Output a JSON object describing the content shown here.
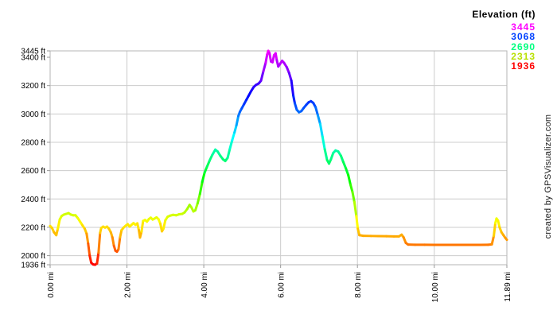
{
  "page": {
    "background": "#ffffff"
  },
  "legend": {
    "title": "Elevation (ft)",
    "entries": [
      {
        "label": "3445",
        "color": "#ff00ff"
      },
      {
        "label": "3068",
        "color": "#0040ff"
      },
      {
        "label": "2690",
        "color": "#00ff80"
      },
      {
        "label": "2313",
        "color": "#b8e000"
      },
      {
        "label": "1936",
        "color": "#ff0000"
      }
    ]
  },
  "watermark": {
    "text": "created by GPSVisualizer.com"
  },
  "chart_data": {
    "type": "line",
    "title": "",
    "x_unit": "mi",
    "y_unit": "ft",
    "xlim": [
      0,
      11.89
    ],
    "ylim": [
      1936,
      3445
    ],
    "grid_on": true,
    "grid_color": "#cccccc",
    "frame_color": "#b5b5b5",
    "tick_color": "#999999",
    "line_width": 3,
    "legend_position": "top-right",
    "color_scale": {
      "min": 1936,
      "max": 3445,
      "hue_start": 0,
      "hue_end": 300,
      "description": "elevation mapped to hsl hue: red lowest to magenta highest"
    },
    "x_gridlines": [
      2,
      4,
      6,
      8,
      10
    ],
    "y_gridlines": [
      2000,
      2200,
      2400,
      2600,
      2800,
      3000,
      3200
    ],
    "x_ticks": [
      {
        "value": 0,
        "label": "0.00 mi"
      },
      {
        "value": 2,
        "label": "2.00 mi"
      },
      {
        "value": 4,
        "label": "4.00 mi"
      },
      {
        "value": 6,
        "label": "6.00 mi"
      },
      {
        "value": 8,
        "label": "8.00 mi"
      },
      {
        "value": 10,
        "label": "10.00 mi"
      },
      {
        "value": 11.89,
        "label": "11.89 mi"
      }
    ],
    "y_ticks": [
      {
        "value": 3445,
        "label": "3445 ft"
      },
      {
        "value": 3400,
        "label": "3400 ft"
      },
      {
        "value": 3200,
        "label": "3200 ft"
      },
      {
        "value": 3000,
        "label": "3000 ft"
      },
      {
        "value": 2800,
        "label": "2800 ft"
      },
      {
        "value": 2600,
        "label": "2600 ft"
      },
      {
        "value": 2400,
        "label": "2400 ft"
      },
      {
        "value": 2200,
        "label": "2200 ft"
      },
      {
        "value": 2000,
        "label": "2000 ft"
      },
      {
        "value": 1936,
        "label": "1936 ft"
      }
    ],
    "series": [
      {
        "name": "Elevation (ft)",
        "points": [
          [
            0.0,
            2210
          ],
          [
            0.05,
            2195
          ],
          [
            0.1,
            2165
          ],
          [
            0.16,
            2145
          ],
          [
            0.2,
            2190
          ],
          [
            0.25,
            2255
          ],
          [
            0.3,
            2280
          ],
          [
            0.36,
            2290
          ],
          [
            0.42,
            2295
          ],
          [
            0.48,
            2300
          ],
          [
            0.54,
            2290
          ],
          [
            0.6,
            2285
          ],
          [
            0.66,
            2285
          ],
          [
            0.72,
            2265
          ],
          [
            0.78,
            2240
          ],
          [
            0.84,
            2215
          ],
          [
            0.9,
            2190
          ],
          [
            0.95,
            2155
          ],
          [
            0.99,
            2085
          ],
          [
            1.03,
            2000
          ],
          [
            1.07,
            1950
          ],
          [
            1.12,
            1938
          ],
          [
            1.17,
            1936
          ],
          [
            1.22,
            1945
          ],
          [
            1.26,
            2020
          ],
          [
            1.3,
            2160
          ],
          [
            1.33,
            2195
          ],
          [
            1.38,
            2205
          ],
          [
            1.43,
            2198
          ],
          [
            1.48,
            2205
          ],
          [
            1.53,
            2190
          ],
          [
            1.58,
            2165
          ],
          [
            1.62,
            2130
          ],
          [
            1.66,
            2070
          ],
          [
            1.7,
            2035
          ],
          [
            1.74,
            2028
          ],
          [
            1.78,
            2045
          ],
          [
            1.82,
            2130
          ],
          [
            1.86,
            2180
          ],
          [
            1.92,
            2200
          ],
          [
            1.97,
            2212
          ],
          [
            2.02,
            2222
          ],
          [
            2.07,
            2205
          ],
          [
            2.12,
            2218
          ],
          [
            2.17,
            2230
          ],
          [
            2.22,
            2218
          ],
          [
            2.27,
            2228
          ],
          [
            2.31,
            2180
          ],
          [
            2.34,
            2128
          ],
          [
            2.38,
            2170
          ],
          [
            2.42,
            2245
          ],
          [
            2.47,
            2252
          ],
          [
            2.52,
            2240
          ],
          [
            2.57,
            2258
          ],
          [
            2.62,
            2268
          ],
          [
            2.67,
            2255
          ],
          [
            2.72,
            2262
          ],
          [
            2.77,
            2270
          ],
          [
            2.82,
            2258
          ],
          [
            2.87,
            2225
          ],
          [
            2.91,
            2172
          ],
          [
            2.95,
            2190
          ],
          [
            3.0,
            2250
          ],
          [
            3.06,
            2275
          ],
          [
            3.12,
            2282
          ],
          [
            3.2,
            2288
          ],
          [
            3.28,
            2285
          ],
          [
            3.36,
            2292
          ],
          [
            3.44,
            2295
          ],
          [
            3.5,
            2305
          ],
          [
            3.57,
            2330
          ],
          [
            3.63,
            2358
          ],
          [
            3.68,
            2340
          ],
          [
            3.73,
            2312
          ],
          [
            3.78,
            2320
          ],
          [
            3.84,
            2370
          ],
          [
            3.9,
            2435
          ],
          [
            3.96,
            2520
          ],
          [
            4.02,
            2585
          ],
          [
            4.08,
            2625
          ],
          [
            4.15,
            2670
          ],
          [
            4.22,
            2710
          ],
          [
            4.3,
            2748
          ],
          [
            4.36,
            2735
          ],
          [
            4.43,
            2705
          ],
          [
            4.5,
            2680
          ],
          [
            4.56,
            2668
          ],
          [
            4.62,
            2690
          ],
          [
            4.68,
            2755
          ],
          [
            4.74,
            2815
          ],
          [
            4.8,
            2870
          ],
          [
            4.85,
            2920
          ],
          [
            4.9,
            2985
          ],
          [
            4.94,
            3015
          ],
          [
            4.99,
            3040
          ],
          [
            5.05,
            3070
          ],
          [
            5.11,
            3100
          ],
          [
            5.16,
            3125
          ],
          [
            5.23,
            3160
          ],
          [
            5.3,
            3190
          ],
          [
            5.36,
            3205
          ],
          [
            5.43,
            3215
          ],
          [
            5.49,
            3235
          ],
          [
            5.55,
            3300
          ],
          [
            5.61,
            3360
          ],
          [
            5.65,
            3420
          ],
          [
            5.68,
            3445
          ],
          [
            5.71,
            3430
          ],
          [
            5.75,
            3370
          ],
          [
            5.79,
            3365
          ],
          [
            5.83,
            3415
          ],
          [
            5.87,
            3428
          ],
          [
            5.9,
            3380
          ],
          [
            5.94,
            3335
          ],
          [
            5.99,
            3355
          ],
          [
            6.04,
            3375
          ],
          [
            6.09,
            3360
          ],
          [
            6.16,
            3330
          ],
          [
            6.22,
            3290
          ],
          [
            6.28,
            3235
          ],
          [
            6.33,
            3130
          ],
          [
            6.37,
            3075
          ],
          [
            6.42,
            3030
          ],
          [
            6.48,
            3012
          ],
          [
            6.54,
            3020
          ],
          [
            6.6,
            3042
          ],
          [
            6.67,
            3065
          ],
          [
            6.73,
            3082
          ],
          [
            6.79,
            3090
          ],
          [
            6.85,
            3078
          ],
          [
            6.91,
            3048
          ],
          [
            6.97,
            2990
          ],
          [
            7.03,
            2930
          ],
          [
            7.09,
            2840
          ],
          [
            7.15,
            2750
          ],
          [
            7.21,
            2675
          ],
          [
            7.26,
            2650
          ],
          [
            7.31,
            2680
          ],
          [
            7.37,
            2725
          ],
          [
            7.43,
            2742
          ],
          [
            7.5,
            2735
          ],
          [
            7.57,
            2705
          ],
          [
            7.63,
            2662
          ],
          [
            7.7,
            2615
          ],
          [
            7.76,
            2570
          ],
          [
            7.82,
            2500
          ],
          [
            7.87,
            2450
          ],
          [
            7.92,
            2380
          ],
          [
            7.97,
            2280
          ],
          [
            8.01,
            2190
          ],
          [
            8.05,
            2145
          ],
          [
            8.15,
            2140
          ],
          [
            8.35,
            2139
          ],
          [
            8.55,
            2138
          ],
          [
            8.75,
            2137
          ],
          [
            8.95,
            2136
          ],
          [
            9.08,
            2136
          ],
          [
            9.15,
            2148
          ],
          [
            9.2,
            2130
          ],
          [
            9.26,
            2090
          ],
          [
            9.32,
            2078
          ],
          [
            9.5,
            2077
          ],
          [
            9.75,
            2077
          ],
          [
            10.0,
            2076
          ],
          [
            10.25,
            2076
          ],
          [
            10.5,
            2076
          ],
          [
            10.75,
            2076
          ],
          [
            11.0,
            2076
          ],
          [
            11.2,
            2076
          ],
          [
            11.4,
            2077
          ],
          [
            11.5,
            2080
          ],
          [
            11.55,
            2140
          ],
          [
            11.59,
            2230
          ],
          [
            11.62,
            2262
          ],
          [
            11.66,
            2248
          ],
          [
            11.7,
            2200
          ],
          [
            11.75,
            2165
          ],
          [
            11.8,
            2145
          ],
          [
            11.85,
            2125
          ],
          [
            11.89,
            2112
          ]
        ]
      }
    ]
  }
}
